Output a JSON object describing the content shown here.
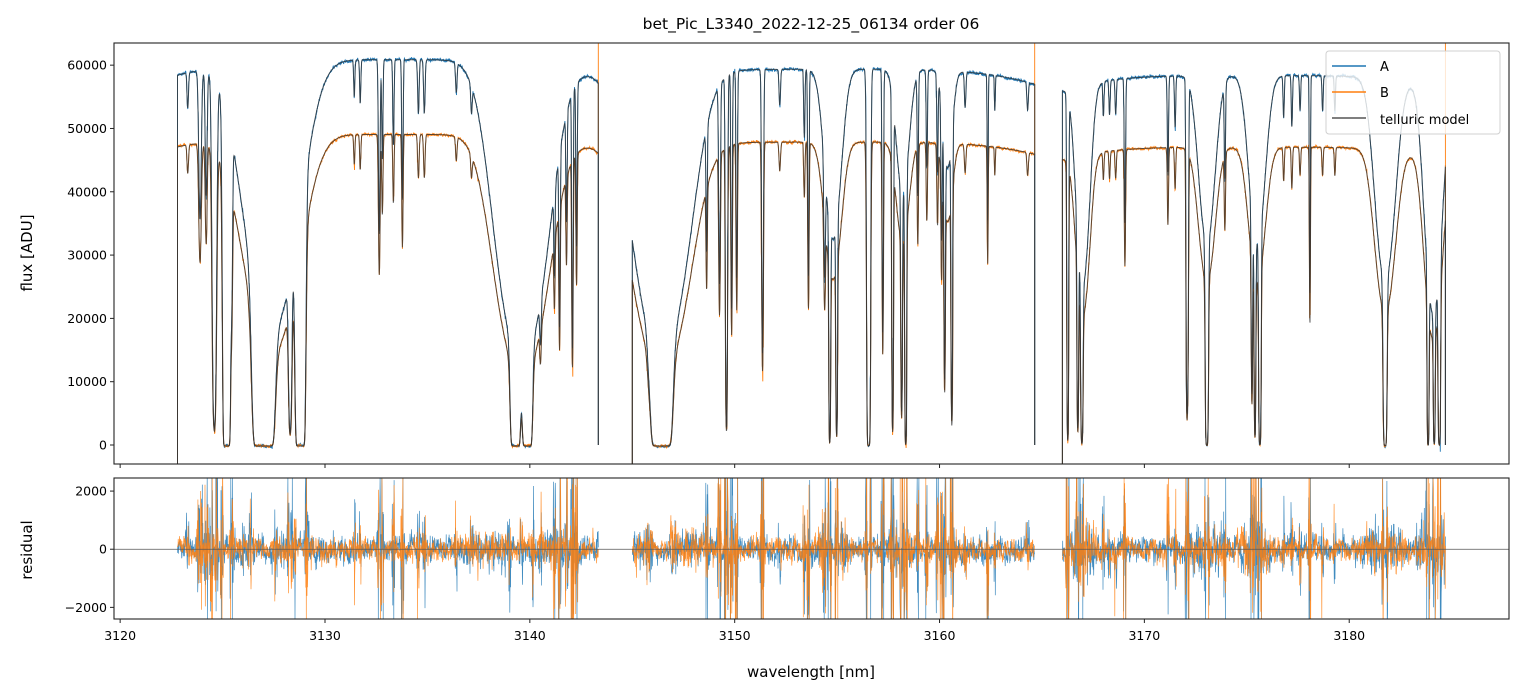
{
  "chart_data": [
    {
      "type": "line",
      "title": "bet_Pic_L3340_2022-12-25_06134  order 06",
      "xlabel": "",
      "ylabel": "flux [ADU]",
      "xlim": [
        3119.7,
        3187.8
      ],
      "ylim": [
        -3000,
        63500
      ],
      "xticks": [
        3120,
        3130,
        3140,
        3150,
        3160,
        3170,
        3180
      ],
      "yticks": [
        0,
        10000,
        20000,
        30000,
        40000,
        50000,
        60000
      ],
      "grid": false,
      "legend": {
        "placement": "top-right",
        "entries": [
          "A",
          "B",
          "telluric model"
        ]
      },
      "colors": {
        "A": "#1f77b4",
        "B": "#ff7f0e",
        "telluric model": "#555555"
      },
      "segments": [
        {
          "range": [
            3122.8,
            3143.35
          ],
          "continuum_A": 61000,
          "continuum_B": 49200
        },
        {
          "range": [
            3145.0,
            3164.65
          ],
          "continuum_A": 59500,
          "continuum_B": 48000
        },
        {
          "range": [
            3166.0,
            3184.7
          ],
          "continuum_A": 58500,
          "continuum_B": 47200
        }
      ],
      "absorption_lines_nm_tau_width": [
        [
          3123.3,
          0.1,
          0.05
        ],
        [
          3123.9,
          0.5,
          0.08
        ],
        [
          3124.2,
          0.4,
          0.06
        ],
        [
          3124.6,
          3,
          0.1
        ],
        [
          3125.2,
          20,
          0.12
        ],
        [
          3125.45,
          0.6,
          0.05
        ],
        [
          3127.0,
          40,
          0.3
        ],
        [
          3127.4,
          1.2,
          1.5
        ],
        [
          3128.3,
          2.5,
          0.08
        ],
        [
          3128.8,
          25,
          0.15
        ],
        [
          3131.43,
          0.1,
          0.04
        ],
        [
          3131.72,
          0.12,
          0.04
        ],
        [
          3132.65,
          0.6,
          0.05
        ],
        [
          3132.8,
          0.3,
          0.04
        ],
        [
          3133.34,
          0.25,
          0.04
        ],
        [
          3133.78,
          0.45,
          0.04
        ],
        [
          3134.56,
          0.15,
          0.05
        ],
        [
          3134.85,
          0.15,
          0.05
        ],
        [
          3136.41,
          0.08,
          0.05
        ],
        [
          3137.15,
          0.08,
          0.05
        ],
        [
          3139.3,
          20,
          0.15
        ],
        [
          3139.88,
          20,
          0.15
        ],
        [
          3139.6,
          1.5,
          1.4
        ],
        [
          3140.52,
          0.35,
          0.05
        ],
        [
          3141.2,
          0.4,
          0.04
        ],
        [
          3141.45,
          0.9,
          0.04
        ],
        [
          3141.79,
          0.4,
          0.04
        ],
        [
          3142.08,
          1.3,
          0.04
        ],
        [
          3142.28,
          0.6,
          0.04
        ],
        [
          3146.43,
          30,
          0.3
        ],
        [
          3146.43,
          1.4,
          1.5
        ],
        [
          3145.8,
          0.15,
          0.1
        ],
        [
          3148.63,
          0.5,
          0.04
        ],
        [
          3149.26,
          0.8,
          0.05
        ],
        [
          3149.6,
          3,
          0.05
        ],
        [
          3149.85,
          1,
          0.04
        ],
        [
          3150.1,
          0.8,
          0.04
        ],
        [
          3151.36,
          1.4,
          0.05
        ],
        [
          3152.2,
          0.1,
          0.05
        ],
        [
          3153.4,
          0.2,
          0.04
        ],
        [
          3153.6,
          0.8,
          0.04
        ],
        [
          3154.8,
          0.6,
          0.5
        ],
        [
          3154.39,
          0.5,
          0.05
        ],
        [
          3154.64,
          4,
          0.04
        ],
        [
          3154.98,
          3,
          0.04
        ],
        [
          3156.54,
          8,
          0.07
        ],
        [
          3157.23,
          1.2,
          0.04
        ],
        [
          3158.2,
          0.4,
          0.4
        ],
        [
          3157.71,
          3,
          0.04
        ],
        [
          3158.15,
          2,
          0.04
        ],
        [
          3158.35,
          5,
          0.04
        ],
        [
          3158.94,
          0.4,
          0.04
        ],
        [
          3159.38,
          0.3,
          0.04
        ],
        [
          3159.9,
          0.3,
          0.04
        ],
        [
          3160.1,
          0.5,
          0.04
        ],
        [
          3160.25,
          1.5,
          0.04
        ],
        [
          3160.6,
          2.5,
          0.04
        ],
        [
          3160.4,
          0.3,
          0.3
        ],
        [
          3161.25,
          0.1,
          0.05
        ],
        [
          3162.35,
          0.5,
          0.03
        ],
        [
          3162.7,
          0.1,
          0.03
        ],
        [
          3164.3,
          0.08,
          0.05
        ],
        [
          3166.26,
          4,
          0.04
        ],
        [
          3166.75,
          2.5,
          0.04
        ],
        [
          3166.95,
          4,
          0.05
        ],
        [
          3167.0,
          0.8,
          0.4
        ],
        [
          3168.0,
          0.1,
          0.04
        ],
        [
          3168.3,
          0.1,
          0.04
        ],
        [
          3168.6,
          0.1,
          0.04
        ],
        [
          3169.05,
          0.5,
          0.04
        ],
        [
          3171.15,
          0.3,
          0.04
        ],
        [
          3171.5,
          0.15,
          0.04
        ],
        [
          3172.07,
          2,
          0.04
        ],
        [
          3172.12,
          1.5,
          0.04
        ],
        [
          3173.05,
          6,
          0.06
        ],
        [
          3173.05,
          0.6,
          0.5
        ],
        [
          3173.93,
          0.3,
          0.04
        ],
        [
          3175.25,
          1.5,
          0.04
        ],
        [
          3175.4,
          3,
          0.04
        ],
        [
          3175.64,
          5,
          0.05
        ],
        [
          3175.5,
          0.6,
          0.5
        ],
        [
          3176.8,
          0.12,
          0.04
        ],
        [
          3177.2,
          0.15,
          0.04
        ],
        [
          3177.6,
          0.1,
          0.04
        ],
        [
          3178.08,
          0.9,
          0.03
        ],
        [
          3178.7,
          0.1,
          0.04
        ],
        [
          3179.3,
          0.1,
          0.04
        ],
        [
          3181.75,
          7,
          0.07
        ],
        [
          3181.75,
          0.8,
          0.6
        ],
        [
          3183.85,
          5,
          0.04
        ],
        [
          3184.1,
          1,
          0.5
        ],
        [
          3184.15,
          4,
          0.04
        ],
        [
          3184.4,
          5,
          0.05
        ]
      ]
    },
    {
      "type": "line",
      "xlabel": "wavelength [nm]",
      "ylabel": "residual",
      "xlim": [
        3119.7,
        3187.8
      ],
      "ylim": [
        -2400,
        2450
      ],
      "xticks": [
        3120,
        3130,
        3140,
        3150,
        3160,
        3170,
        3180
      ],
      "yticks": [
        -2000,
        0,
        2000
      ],
      "grid": false,
      "reference_line": 0,
      "series": [
        "A",
        "B"
      ]
    }
  ]
}
